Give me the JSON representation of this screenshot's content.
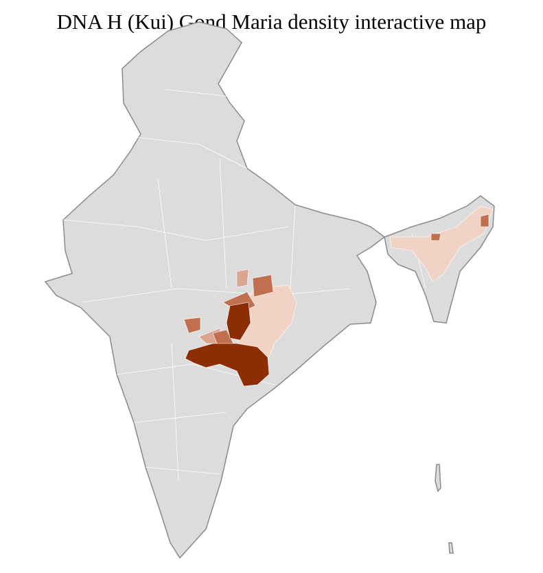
{
  "title": "DNA H (Kui) Gond Maria density interactive map",
  "colors": {
    "base": "#dcdcdc",
    "border": "#8a8a8a",
    "district_border": "#ffffff",
    "density_high": "#8c2d04",
    "density_mid": "#c0704e",
    "density_low": "#d9a591",
    "density_very_low": "#f0d3c5"
  }
}
